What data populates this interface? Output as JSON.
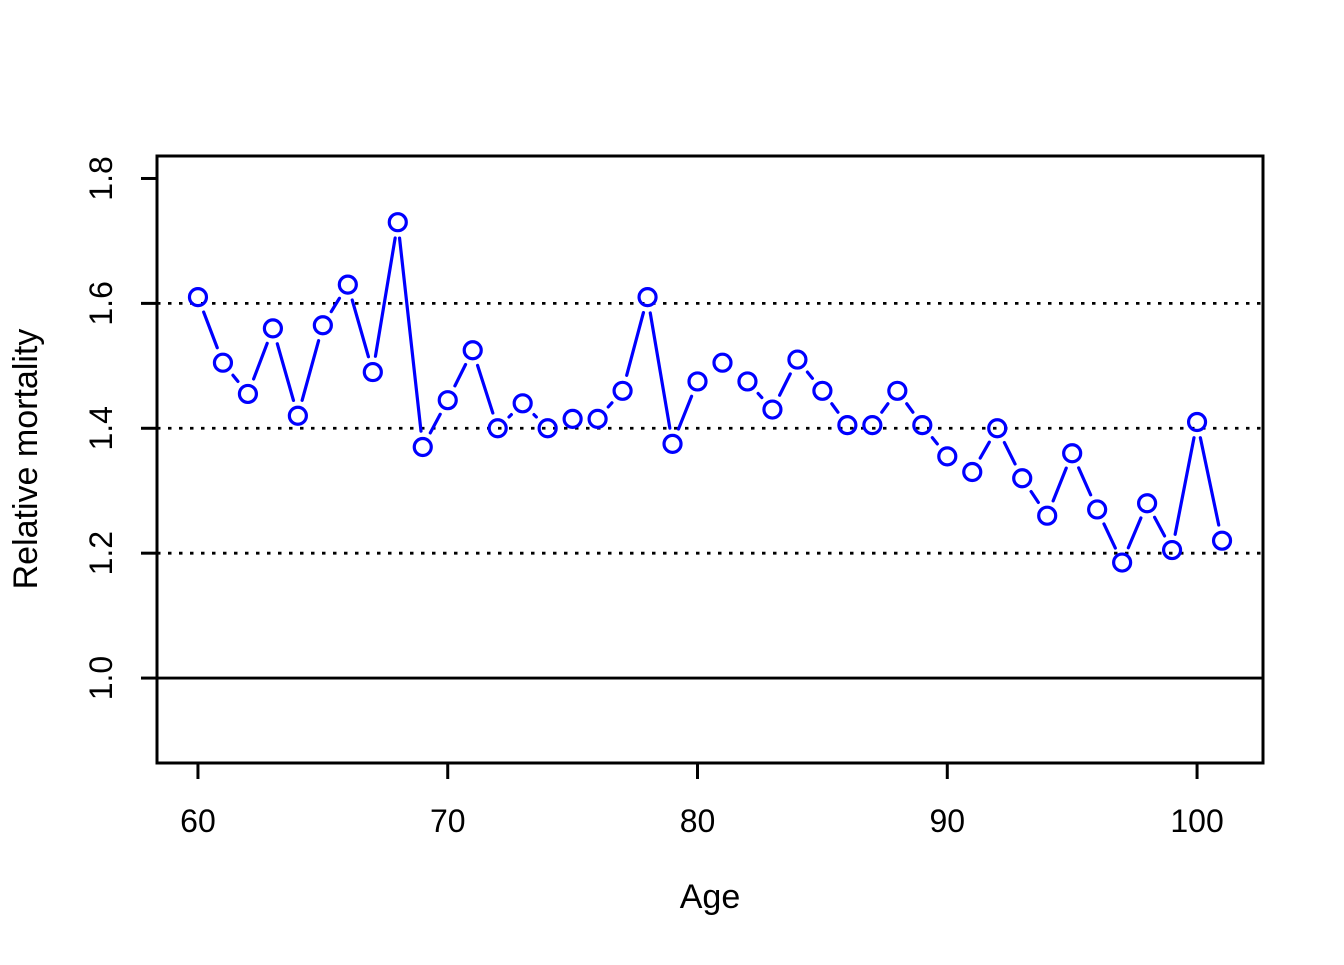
{
  "figure": {
    "background": "#ffffff",
    "axis_color": "#000000",
    "series_color": "#0000ff"
  },
  "chart_data": {
    "type": "line",
    "marker": "open-circle",
    "title": "",
    "xlabel": "Age",
    "ylabel": "Relative mortality",
    "xlim": [
      58.36,
      102.64
    ],
    "ylim": [
      0.864,
      1.836
    ],
    "x_ticks": [
      60,
      70,
      80,
      90,
      100
    ],
    "x_tick_labels": [
      "60",
      "70",
      "80",
      "90",
      "100"
    ],
    "y_ticks": [
      1.0,
      1.2,
      1.4,
      1.6,
      1.8
    ],
    "y_tick_labels": [
      "1.0",
      "1.2",
      "1.4",
      "1.6",
      "1.8"
    ],
    "grid": "dotted horizontal reference lines",
    "legend": null,
    "reference_lines": {
      "solid": [
        1.0
      ],
      "dotted": [
        1.2,
        1.4,
        1.6
      ]
    },
    "series": [
      {
        "name": "relative-mortality",
        "color": "#0000ff",
        "x": [
          60,
          61,
          62,
          63,
          64,
          65,
          66,
          67,
          68,
          69,
          70,
          71,
          72,
          73,
          74,
          75,
          76,
          77,
          78,
          79,
          80,
          81,
          82,
          83,
          84,
          85,
          86,
          87,
          88,
          89,
          90,
          91,
          92,
          93,
          94,
          95,
          96,
          97,
          98,
          99,
          100,
          101
        ],
        "y": [
          1.61,
          1.505,
          1.455,
          1.56,
          1.42,
          1.565,
          1.63,
          1.49,
          1.73,
          1.37,
          1.445,
          1.525,
          1.4,
          1.44,
          1.4,
          1.415,
          1.415,
          1.46,
          1.61,
          1.375,
          1.475,
          1.505,
          1.475,
          1.43,
          1.51,
          1.46,
          1.405,
          1.405,
          1.46,
          1.405,
          1.355,
          1.33,
          1.4,
          1.32,
          1.26,
          1.36,
          1.27,
          1.185,
          1.28,
          1.205,
          1.41,
          1.22
        ]
      }
    ]
  }
}
